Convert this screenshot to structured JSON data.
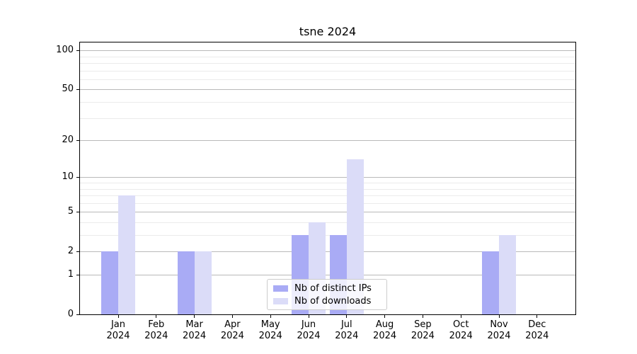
{
  "figure": {
    "title": "tsne 2024"
  },
  "chart_data": {
    "type": "bar",
    "title": "tsne 2024",
    "months": [
      "Jan",
      "Feb",
      "Mar",
      "Apr",
      "May",
      "Jun",
      "Jul",
      "Aug",
      "Sep",
      "Oct",
      "Nov",
      "Dec"
    ],
    "year": "2024",
    "series": [
      {
        "name": "Nb of distinct IPs",
        "key": "distinct-ips",
        "color": "#a9abf5",
        "values": [
          2,
          0,
          2,
          0,
          0,
          3,
          3,
          0,
          0,
          0,
          2,
          0
        ]
      },
      {
        "name": "Nb of downloads",
        "key": "downloads",
        "color": "#dbdcf8",
        "values": [
          7,
          0,
          2,
          0,
          0,
          4,
          14,
          0,
          0,
          0,
          3,
          0
        ]
      }
    ],
    "xlabel": "",
    "ylabel": "",
    "yscale": "log1p",
    "ylim": [
      0,
      115
    ],
    "y_major_ticks": [
      0,
      1,
      2,
      5,
      10,
      20,
      50,
      100
    ],
    "y_minor_ticks": [
      3,
      4,
      6,
      7,
      8,
      9,
      30,
      40,
      60,
      70,
      80,
      90
    ],
    "grid": true,
    "legend_position": "lower center",
    "colors": {
      "major_grid": "#b9b9b9",
      "minor_grid": "#ebebeb",
      "axis": "#000000",
      "background": "#ffffff"
    }
  }
}
